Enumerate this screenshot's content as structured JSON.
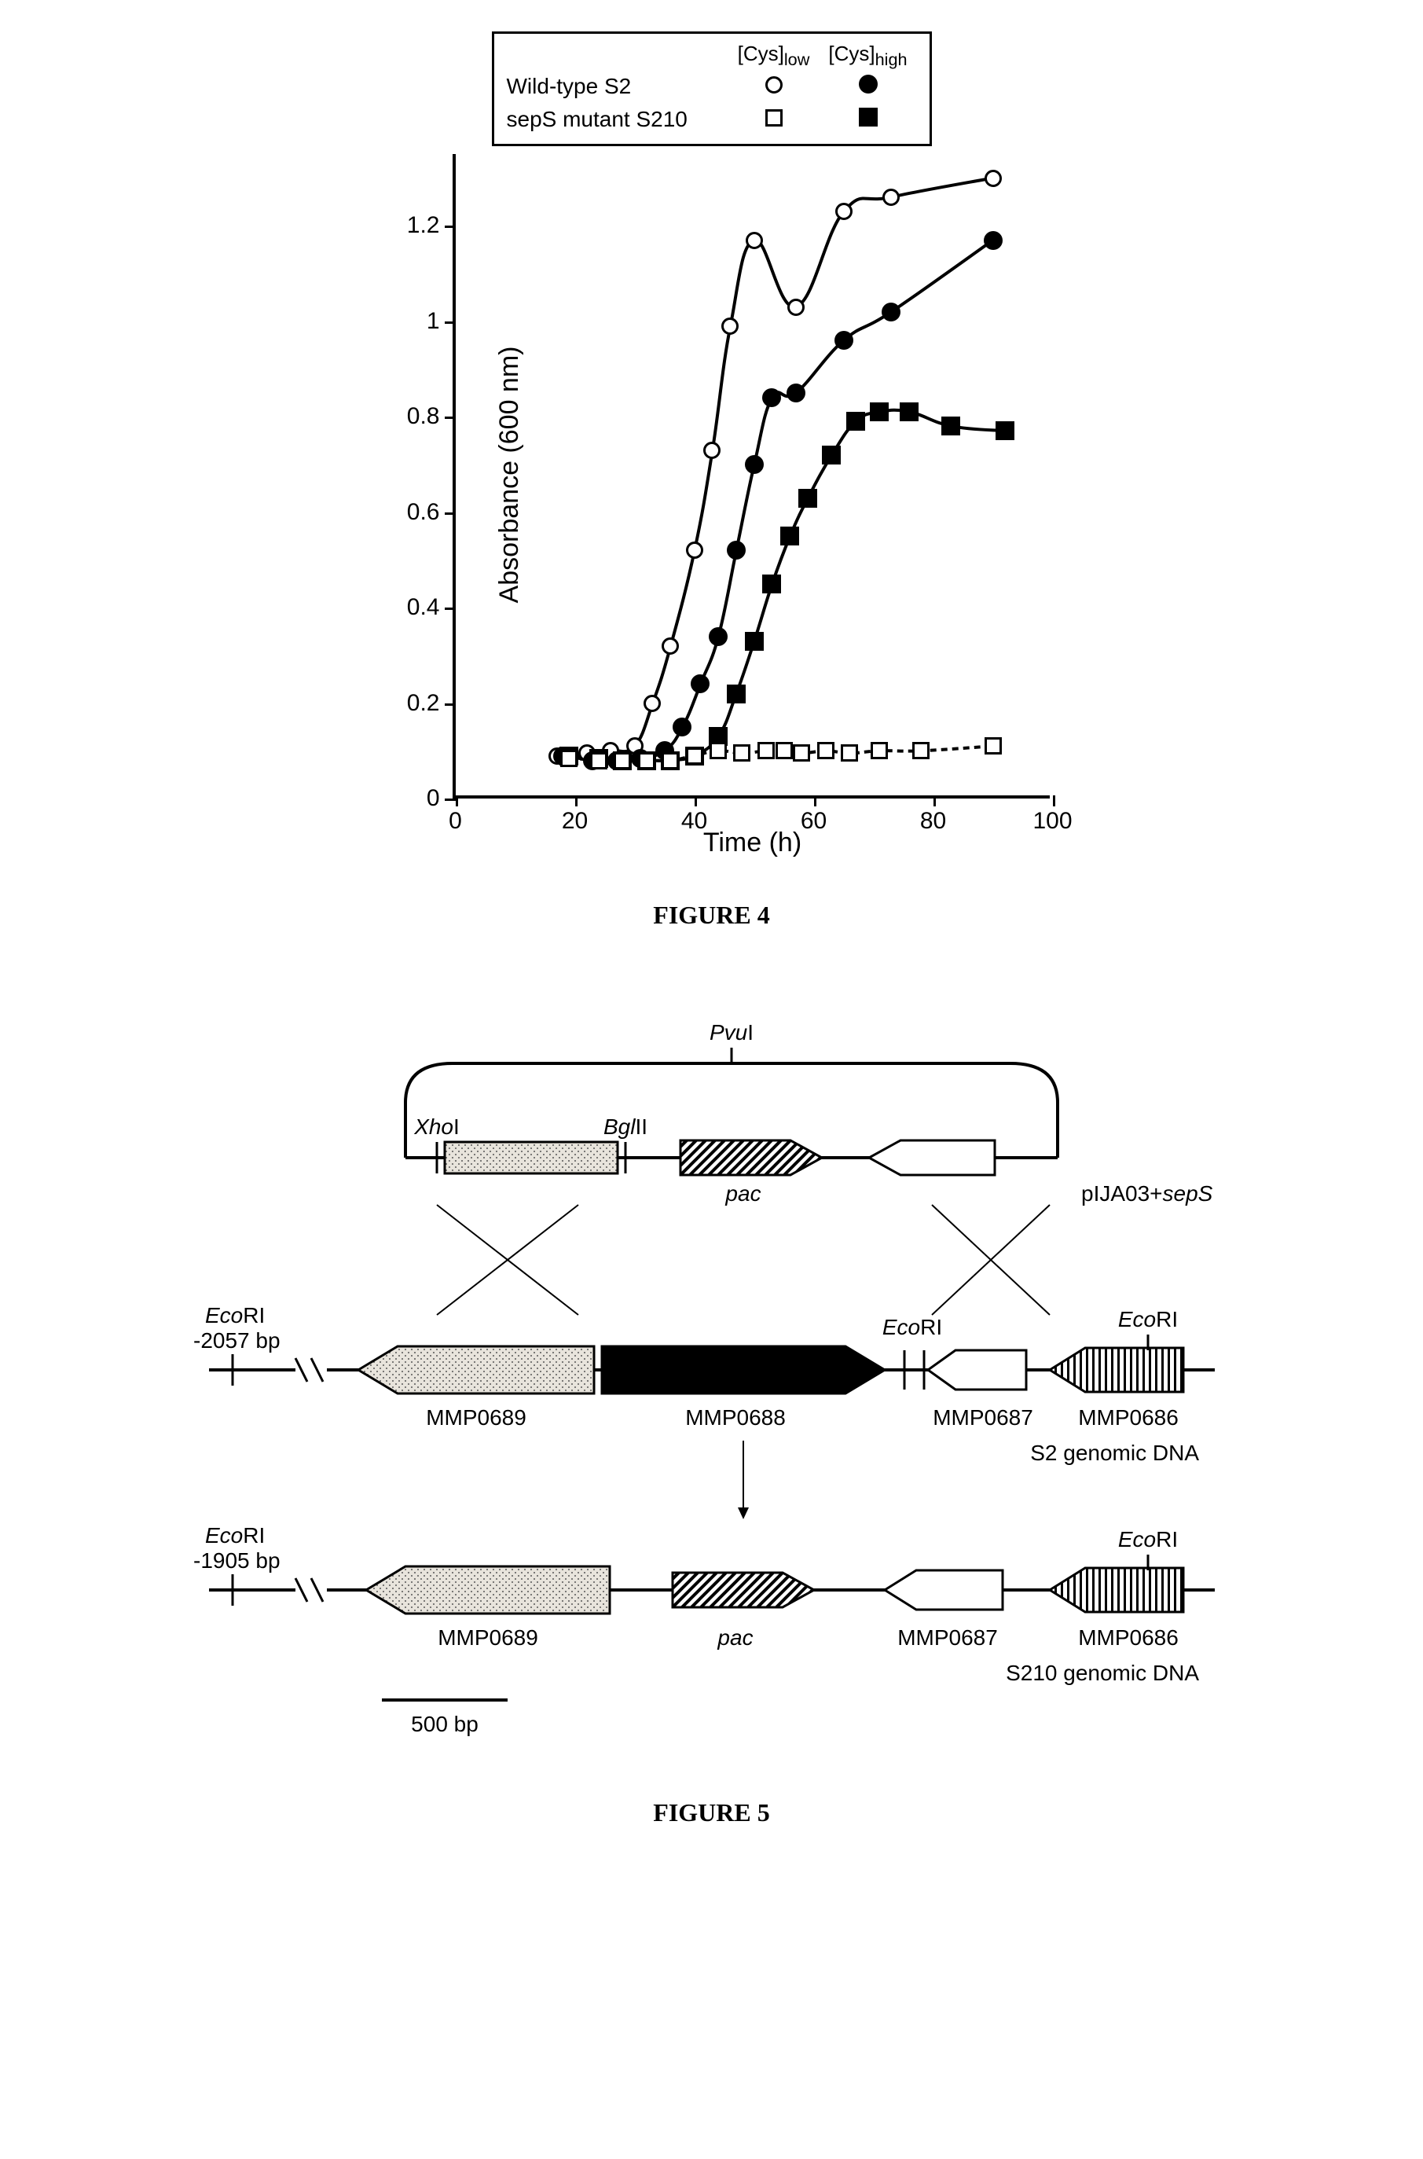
{
  "figure4": {
    "caption": "FIGURE 4",
    "legend": {
      "col_low": "[Cys]",
      "col_low_sub": "low",
      "col_high": "[Cys]",
      "col_high_sub": "high",
      "row1": "Wild-type S2",
      "row2": "sepS mutant S210"
    },
    "chart": {
      "type": "line-scatter",
      "xlabel": "Time (h)",
      "ylabel": "Absorbance (600 nm)",
      "xlim": [
        0,
        100
      ],
      "ylim": [
        0,
        1.35
      ],
      "xticks": [
        0,
        20,
        40,
        60,
        80,
        100
      ],
      "yticks": [
        0,
        0.2,
        0.4,
        0.6,
        0.8,
        1,
        1.2
      ],
      "axis_color": "#000000",
      "background_color": "#ffffff",
      "line_color": "#000000",
      "line_width": 4,
      "series": [
        {
          "name": "WT S2 low Cys",
          "marker": "circle-open",
          "points": [
            [
              17,
              0.09
            ],
            [
              22,
              0.095
            ],
            [
              26,
              0.1
            ],
            [
              30,
              0.11
            ],
            [
              33,
              0.2
            ],
            [
              36,
              0.32
            ],
            [
              40,
              0.52
            ],
            [
              43,
              0.73
            ],
            [
              46,
              0.99
            ],
            [
              50,
              1.17
            ],
            [
              57,
              1.03
            ],
            [
              65,
              1.23
            ],
            [
              73,
              1.26
            ],
            [
              90,
              1.3
            ]
          ]
        },
        {
          "name": "WT S2 high Cys",
          "marker": "circle-fill",
          "points": [
            [
              18,
              0.09
            ],
            [
              23,
              0.08
            ],
            [
              27,
              0.08
            ],
            [
              31,
              0.085
            ],
            [
              35,
              0.1
            ],
            [
              38,
              0.15
            ],
            [
              41,
              0.24
            ],
            [
              44,
              0.34
            ],
            [
              47,
              0.52
            ],
            [
              50,
              0.7
            ],
            [
              53,
              0.84
            ],
            [
              57,
              0.85
            ],
            [
              65,
              0.96
            ],
            [
              73,
              1.02
            ],
            [
              90,
              1.17
            ]
          ]
        },
        {
          "name": "S210 high Cys",
          "marker": "square-fill",
          "points": [
            [
              19,
              0.09
            ],
            [
              24,
              0.085
            ],
            [
              28,
              0.08
            ],
            [
              32,
              0.08
            ],
            [
              36,
              0.08
            ],
            [
              40,
              0.09
            ],
            [
              44,
              0.13
            ],
            [
              47,
              0.22
            ],
            [
              50,
              0.33
            ],
            [
              53,
              0.45
            ],
            [
              56,
              0.55
            ],
            [
              59,
              0.63
            ],
            [
              63,
              0.72
            ],
            [
              67,
              0.79
            ],
            [
              71,
              0.81
            ],
            [
              76,
              0.81
            ],
            [
              83,
              0.78
            ],
            [
              92,
              0.77
            ]
          ]
        },
        {
          "name": "S210 low Cys",
          "marker": "square-open",
          "points": [
            [
              19,
              0.085
            ],
            [
              24,
              0.08
            ],
            [
              28,
              0.08
            ],
            [
              32,
              0.08
            ],
            [
              36,
              0.08
            ],
            [
              40,
              0.09
            ],
            [
              44,
              0.1
            ],
            [
              48,
              0.095
            ],
            [
              52,
              0.1
            ],
            [
              55,
              0.1
            ],
            [
              58,
              0.095
            ],
            [
              62,
              0.1
            ],
            [
              66,
              0.095
            ],
            [
              71,
              0.1
            ],
            [
              78,
              0.1
            ],
            [
              90,
              0.11
            ]
          ]
        }
      ]
    }
  },
  "figure5": {
    "caption": "FIGURE 5",
    "scale_bar_label": "500 bp",
    "top": {
      "pvu": "PvuI",
      "xho": "XhoI",
      "bgl": "BglII",
      "pac": "pac",
      "plasmid": "pIJA03+sepS"
    },
    "mid": {
      "ecori_left": "EcoRI",
      "left_bp": "-2057 bp",
      "ecori_mid": "EcoRI",
      "ecori_right": "EcoRI",
      "mmp0689": "MMP0689",
      "mmp0688": "MMP0688",
      "mmp0687": "MMP0687",
      "mmp0686": "MMP0686",
      "label": "S2 genomic DNA"
    },
    "bot": {
      "ecori_left": "EcoRI",
      "left_bp": "-1905 bp",
      "ecori_right": "EcoRI",
      "mmp0689": "MMP0689",
      "pac": "pac",
      "mmp0687": "MMP0687",
      "mmp0686": "MMP0686",
      "label": "S210 genomic DNA"
    },
    "colors": {
      "stroke": "#000000",
      "dotted_fill": "#d8d4cd",
      "hatch_fill": "#000000",
      "solid_fill": "#000000",
      "white_fill": "#ffffff",
      "vert_stripe": "#000000"
    }
  }
}
